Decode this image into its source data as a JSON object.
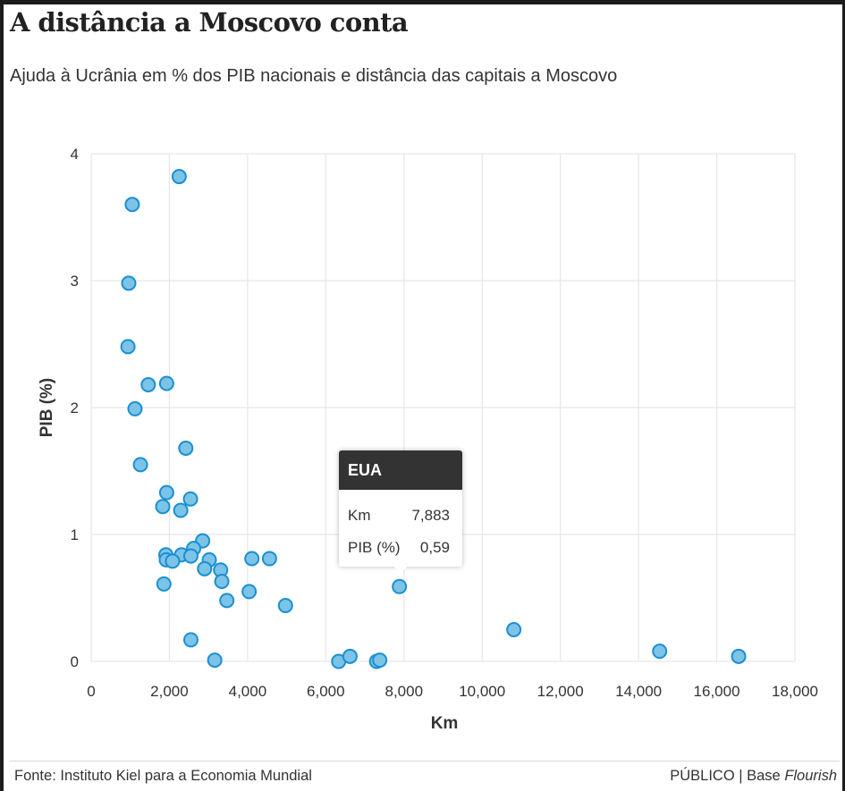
{
  "header": {
    "title": "A distância a Moscovo conta",
    "subtitle": "Ajuda à Ucrânia em % dos PIB nacionais e distância das capitais a Moscovo"
  },
  "footer": {
    "source": "Fonte: Instituto Kiel para a Economia Mundial",
    "credit_prefix": "PÚBLICO | Base ",
    "credit_brand": "Flourish"
  },
  "tooltip": {
    "country": "EUA",
    "rows": [
      {
        "label": "Km",
        "value": "7,883"
      },
      {
        "label": "PIB (%)",
        "value": "0,59"
      }
    ]
  },
  "colors": {
    "point_fill": "#7cc3e8",
    "point_stroke": "#1b8fd0",
    "grid": "#e6e6e6",
    "axis_text": "#333333"
  },
  "chart_data": {
    "type": "scatter",
    "title": "A distância a Moscovo conta",
    "subtitle": "Ajuda à Ucrânia em % dos PIB nacionais e distância das capitais a Moscovo",
    "xlabel": "Km",
    "ylabel": "PIB (%)",
    "xlim": [
      0,
      18000
    ],
    "ylim": [
      0,
      4
    ],
    "x_ticks": [
      0,
      2000,
      4000,
      6000,
      8000,
      10000,
      12000,
      14000,
      16000,
      18000
    ],
    "x_tick_labels": [
      "0",
      "2,000",
      "4,000",
      "6,000",
      "8,000",
      "10,000",
      "12,000",
      "14,000",
      "16,000",
      "18,000"
    ],
    "y_ticks": [
      0,
      1,
      2,
      3,
      4
    ],
    "y_tick_labels": [
      "0",
      "1",
      "2",
      "3",
      "4"
    ],
    "grid": true,
    "points": [
      {
        "x": 2250,
        "y": 3.82
      },
      {
        "x": 1050,
        "y": 3.6
      },
      {
        "x": 960,
        "y": 2.98
      },
      {
        "x": 940,
        "y": 2.48
      },
      {
        "x": 1460,
        "y": 2.18
      },
      {
        "x": 1930,
        "y": 2.19
      },
      {
        "x": 1120,
        "y": 1.99
      },
      {
        "x": 2420,
        "y": 1.68
      },
      {
        "x": 1260,
        "y": 1.55
      },
      {
        "x": 1930,
        "y": 1.33
      },
      {
        "x": 2540,
        "y": 1.28
      },
      {
        "x": 1830,
        "y": 1.22
      },
      {
        "x": 2290,
        "y": 1.19
      },
      {
        "x": 2850,
        "y": 0.95
      },
      {
        "x": 2620,
        "y": 0.89
      },
      {
        "x": 1910,
        "y": 0.84
      },
      {
        "x": 2310,
        "y": 0.84
      },
      {
        "x": 2550,
        "y": 0.83
      },
      {
        "x": 1920,
        "y": 0.8
      },
      {
        "x": 2080,
        "y": 0.79
      },
      {
        "x": 3020,
        "y": 0.8
      },
      {
        "x": 4110,
        "y": 0.81
      },
      {
        "x": 4560,
        "y": 0.81
      },
      {
        "x": 2900,
        "y": 0.73
      },
      {
        "x": 3310,
        "y": 0.72
      },
      {
        "x": 3340,
        "y": 0.63
      },
      {
        "x": 1860,
        "y": 0.61
      },
      {
        "x": 4040,
        "y": 0.55
      },
      {
        "x": 3470,
        "y": 0.48
      },
      {
        "x": 4970,
        "y": 0.44
      },
      {
        "x": 7883,
        "y": 0.59
      },
      {
        "x": 2550,
        "y": 0.17
      },
      {
        "x": 3160,
        "y": 0.01
      },
      {
        "x": 6330,
        "y": 0.0
      },
      {
        "x": 6620,
        "y": 0.04
      },
      {
        "x": 7300,
        "y": 0.0
      },
      {
        "x": 7380,
        "y": 0.01
      },
      {
        "x": 10810,
        "y": 0.25
      },
      {
        "x": 14540,
        "y": 0.08
      },
      {
        "x": 16560,
        "y": 0.04
      }
    ]
  }
}
